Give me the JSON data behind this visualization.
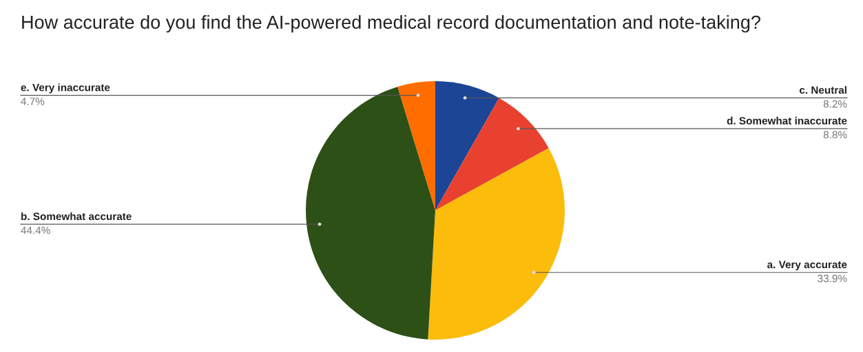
{
  "chart_data": {
    "type": "pie",
    "title": "How accurate do you find the AI-powered medical record documentation and note-taking?",
    "categories": [
      "c. Neutral",
      "d. Somewhat inaccurate",
      "a. Very accurate",
      "b. Somewhat accurate",
      "e. Very inaccurate"
    ],
    "values": [
      8.2,
      8.8,
      33.9,
      44.4,
      4.7
    ],
    "value_labels": [
      "8.2%",
      "8.8%",
      "33.9%",
      "44.4%",
      "4.7%"
    ],
    "colors": [
      "#1c4595",
      "#e8412f",
      "#fbbc0c",
      "#2d5016",
      "#ff6d01"
    ],
    "legend": false
  }
}
